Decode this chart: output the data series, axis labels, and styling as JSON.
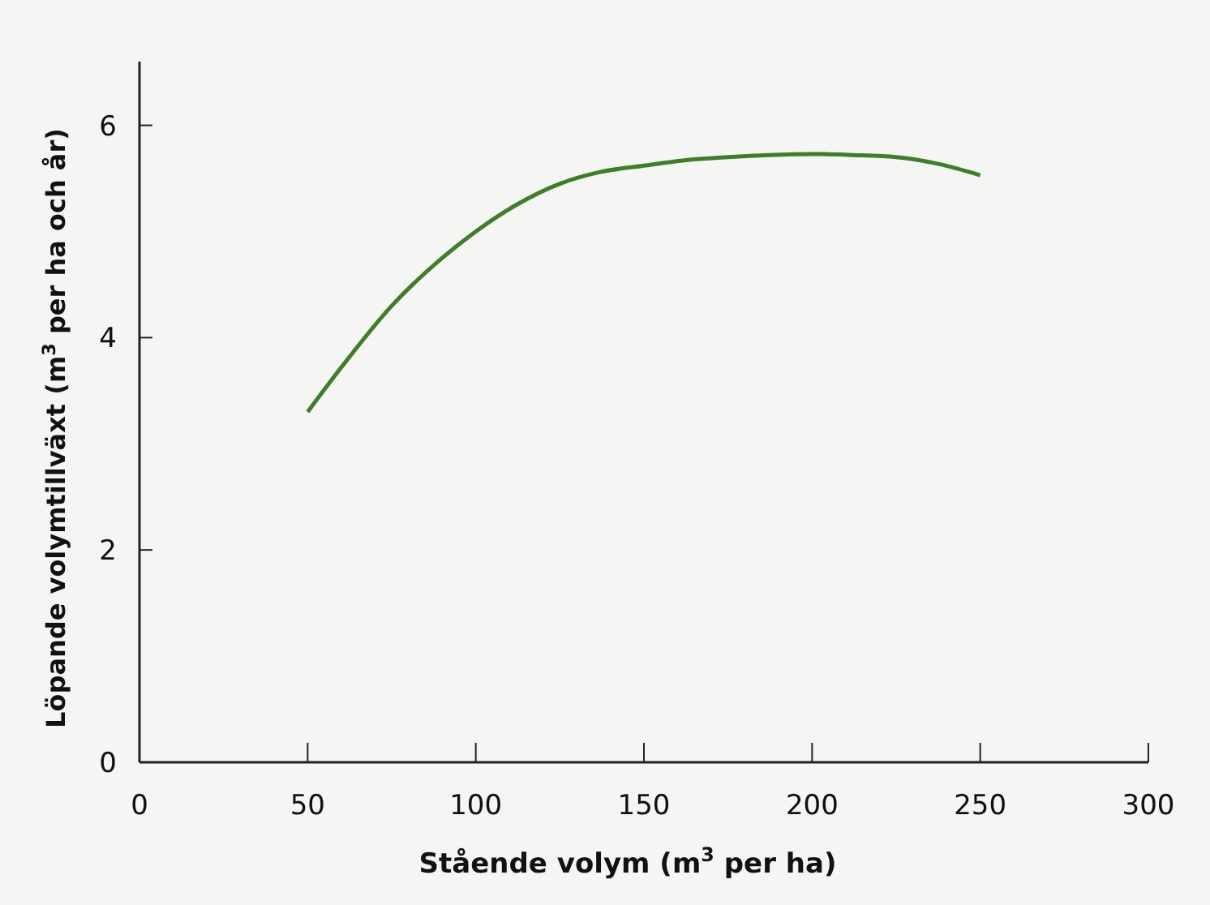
{
  "chart_data": {
    "type": "line",
    "xlabel": "Stående volym (m$^{3}$ per ha)",
    "ylabel": "Löpande volymtillväxt (m$^{3}$ per ha och år)",
    "xlim": [
      0,
      300
    ],
    "xticks": [
      0,
      50,
      100,
      150,
      200,
      250,
      300
    ],
    "ylim": [
      0,
      6.6
    ],
    "yticks": [
      0,
      2,
      4,
      6
    ],
    "marker": "none",
    "line_style": "solid",
    "series": [
      {
        "color": "#3f7d2c",
        "x": [
          50,
          60,
          75,
          90,
          100,
          112,
          125,
          137,
          150,
          162,
          175,
          187,
          200,
          212,
          225,
          237,
          250
        ],
        "values": [
          3.3,
          3.72,
          4.3,
          4.75,
          5.0,
          5.25,
          5.45,
          5.56,
          5.62,
          5.67,
          5.7,
          5.72,
          5.73,
          5.72,
          5.7,
          5.64,
          5.53
        ]
      }
    ]
  }
}
